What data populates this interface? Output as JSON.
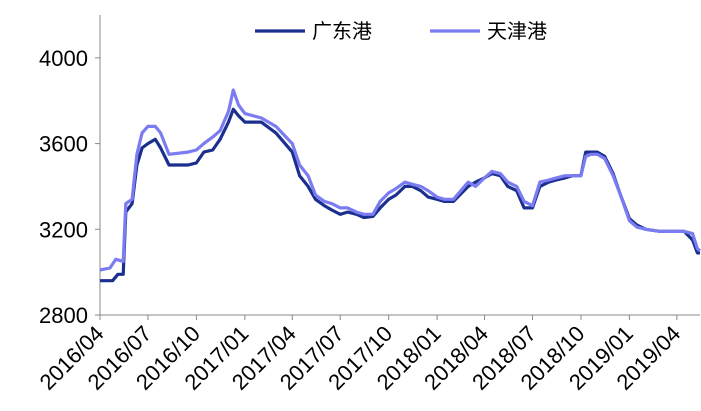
{
  "chart_data": {
    "type": "line",
    "title": "",
    "xlabel": "",
    "ylabel": "",
    "ylim": [
      2800,
      4200
    ],
    "yticks": [
      2800,
      3200,
      3600,
      4000
    ],
    "xticks": [
      "2016/04",
      "2016/07",
      "2016/10",
      "2017/01",
      "2017/04",
      "2017/07",
      "2017/10",
      "2018/01",
      "2018/04",
      "2018/07",
      "2018/10",
      "2019/01",
      "2019/04"
    ],
    "grid": false,
    "legend_position": "top",
    "series": [
      {
        "name": "广东港",
        "color": "#1b2f8f",
        "points": [
          [
            "2016/04",
            2960
          ],
          [
            "2016/04/25",
            2960
          ],
          [
            "2016/05/05",
            2990
          ],
          [
            "2016/05/15",
            2990
          ],
          [
            "2016/05/20",
            3280
          ],
          [
            "2016/06/01",
            3320
          ],
          [
            "2016/06/10",
            3500
          ],
          [
            "2016/06/20",
            3580
          ],
          [
            "2016/07/01",
            3600
          ],
          [
            "2016/07/15",
            3620
          ],
          [
            "2016/07/25",
            3580
          ],
          [
            "2016/08/10",
            3500
          ],
          [
            "2016/09/15",
            3500
          ],
          [
            "2016/10/01",
            3510
          ],
          [
            "2016/10/15",
            3560
          ],
          [
            "2016/11/01",
            3570
          ],
          [
            "2016/11/15",
            3620
          ],
          [
            "2016/12/01",
            3700
          ],
          [
            "2016/12/10",
            3760
          ],
          [
            "2016/12/20",
            3730
          ],
          [
            "2017/01/01",
            3700
          ],
          [
            "2017/02/01",
            3700
          ],
          [
            "2017/03/01",
            3650
          ],
          [
            "2017/04/01",
            3560
          ],
          [
            "2017/04/15",
            3450
          ],
          [
            "2017/05/01",
            3400
          ],
          [
            "2017/05/15",
            3340
          ],
          [
            "2017/06/01",
            3310
          ],
          [
            "2017/06/15",
            3290
          ],
          [
            "2017/07/01",
            3270
          ],
          [
            "2017/07/15",
            3280
          ],
          [
            "2017/08/01",
            3270
          ],
          [
            "2017/08/15",
            3255
          ],
          [
            "2017/09/01",
            3260
          ],
          [
            "2017/09/15",
            3300
          ],
          [
            "2017/10/01",
            3340
          ],
          [
            "2017/10/15",
            3360
          ],
          [
            "2017/11/01",
            3400
          ],
          [
            "2017/11/15",
            3400
          ],
          [
            "2017/12/01",
            3380
          ],
          [
            "2017/12/15",
            3350
          ],
          [
            "2018/01/01",
            3340
          ],
          [
            "2018/01/15",
            3330
          ],
          [
            "2018/02/01",
            3330
          ],
          [
            "2018/03/01",
            3400
          ],
          [
            "2018/03/15",
            3420
          ],
          [
            "2018/04/01",
            3440
          ],
          [
            "2018/04/15",
            3460
          ],
          [
            "2018/05/01",
            3450
          ],
          [
            "2018/05/15",
            3400
          ],
          [
            "2018/06/01",
            3380
          ],
          [
            "2018/06/15",
            3300
          ],
          [
            "2018/07/01",
            3300
          ],
          [
            "2018/07/15",
            3400
          ],
          [
            "2018/08/01",
            3420
          ],
          [
            "2018/08/15",
            3430
          ],
          [
            "2018/09/01",
            3440
          ],
          [
            "2018/09/15",
            3450
          ],
          [
            "2018/10/01",
            3450
          ],
          [
            "2018/10/10",
            3560
          ],
          [
            "2018/10/20",
            3560
          ],
          [
            "2018/11/01",
            3560
          ],
          [
            "2018/11/15",
            3540
          ],
          [
            "2018/12/01",
            3460
          ],
          [
            "2018/12/15",
            3360
          ],
          [
            "2019/01/01",
            3250
          ],
          [
            "2019/01/15",
            3220
          ],
          [
            "2019/02/01",
            3200
          ],
          [
            "2019/03/01",
            3190
          ],
          [
            "2019/04/01",
            3190
          ],
          [
            "2019/04/15",
            3190
          ],
          [
            "2019/05/01",
            3150
          ],
          [
            "2019/05/10",
            3090
          ],
          [
            "2019/05/15",
            3090
          ]
        ]
      },
      {
        "name": "天津港",
        "color": "#7b7cf2",
        "points": [
          [
            "2016/04",
            3010
          ],
          [
            "2016/04/20",
            3020
          ],
          [
            "2016/05/01",
            3060
          ],
          [
            "2016/05/15",
            3050
          ],
          [
            "2016/05/20",
            3320
          ],
          [
            "2016/06/01",
            3340
          ],
          [
            "2016/06/10",
            3550
          ],
          [
            "2016/06/20",
            3650
          ],
          [
            "2016/07/01",
            3680
          ],
          [
            "2016/07/15",
            3680
          ],
          [
            "2016/07/25",
            3650
          ],
          [
            "2016/08/10",
            3550
          ],
          [
            "2016/09/15",
            3560
          ],
          [
            "2016/10/01",
            3570
          ],
          [
            "2016/10/15",
            3600
          ],
          [
            "2016/11/01",
            3630
          ],
          [
            "2016/11/15",
            3660
          ],
          [
            "2016/12/01",
            3750
          ],
          [
            "2016/12/10",
            3850
          ],
          [
            "2016/12/20",
            3780
          ],
          [
            "2017/01/01",
            3740
          ],
          [
            "2017/02/01",
            3720
          ],
          [
            "2017/03/01",
            3680
          ],
          [
            "2017/04/01",
            3600
          ],
          [
            "2017/04/15",
            3500
          ],
          [
            "2017/05/01",
            3450
          ],
          [
            "2017/05/15",
            3360
          ],
          [
            "2017/06/01",
            3330
          ],
          [
            "2017/06/15",
            3320
          ],
          [
            "2017/07/01",
            3300
          ],
          [
            "2017/07/15",
            3300
          ],
          [
            "2017/08/01",
            3280
          ],
          [
            "2017/08/15",
            3270
          ],
          [
            "2017/09/01",
            3270
          ],
          [
            "2017/09/15",
            3330
          ],
          [
            "2017/10/01",
            3370
          ],
          [
            "2017/10/15",
            3390
          ],
          [
            "2017/11/01",
            3420
          ],
          [
            "2017/11/15",
            3410
          ],
          [
            "2017/12/01",
            3400
          ],
          [
            "2017/12/15",
            3380
          ],
          [
            "2018/01/01",
            3350
          ],
          [
            "2018/01/15",
            3340
          ],
          [
            "2018/02/01",
            3340
          ],
          [
            "2018/03/01",
            3420
          ],
          [
            "2018/03/15",
            3400
          ],
          [
            "2018/04/01",
            3440
          ],
          [
            "2018/04/15",
            3470
          ],
          [
            "2018/05/01",
            3460
          ],
          [
            "2018/05/15",
            3420
          ],
          [
            "2018/06/01",
            3400
          ],
          [
            "2018/06/15",
            3330
          ],
          [
            "2018/07/01",
            3310
          ],
          [
            "2018/07/15",
            3420
          ],
          [
            "2018/08/01",
            3430
          ],
          [
            "2018/08/15",
            3440
          ],
          [
            "2018/09/01",
            3450
          ],
          [
            "2018/09/15",
            3450
          ],
          [
            "2018/10/01",
            3450
          ],
          [
            "2018/10/10",
            3540
          ],
          [
            "2018/10/20",
            3550
          ],
          [
            "2018/11/01",
            3550
          ],
          [
            "2018/11/15",
            3530
          ],
          [
            "2018/12/01",
            3450
          ],
          [
            "2018/12/15",
            3360
          ],
          [
            "2019/01/01",
            3240
          ],
          [
            "2019/01/15",
            3210
          ],
          [
            "2019/02/01",
            3200
          ],
          [
            "2019/03/01",
            3190
          ],
          [
            "2019/04/01",
            3190
          ],
          [
            "2019/04/15",
            3190
          ],
          [
            "2019/05/01",
            3180
          ],
          [
            "2019/05/10",
            3110
          ],
          [
            "2019/05/15",
            3100
          ]
        ]
      }
    ]
  }
}
